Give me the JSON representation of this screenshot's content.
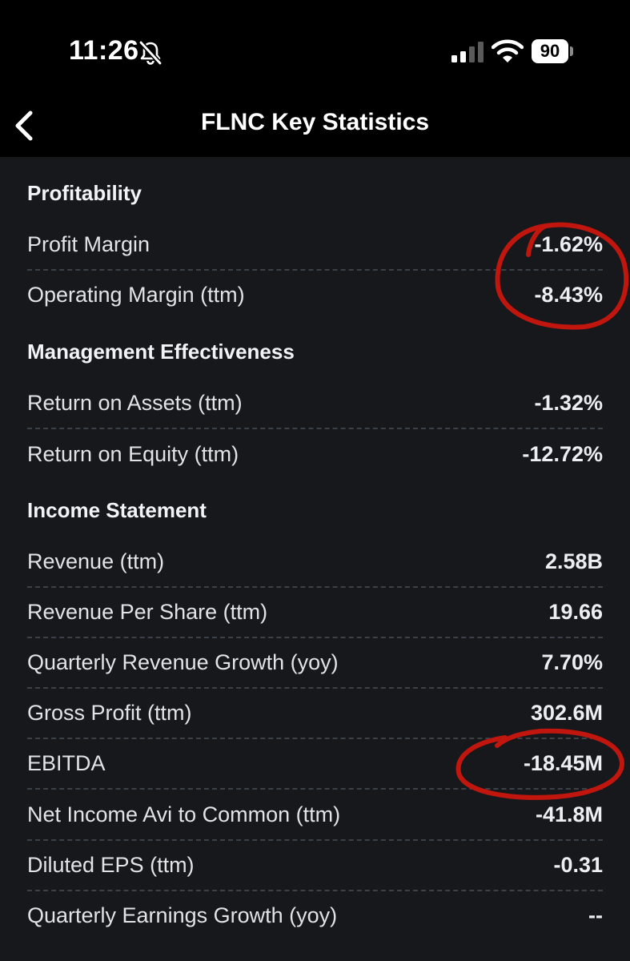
{
  "status_bar": {
    "time": "11:26",
    "battery": "90",
    "icons": [
      "bell-slash-icon",
      "signal-icon",
      "wifi-icon",
      "battery-icon"
    ]
  },
  "nav": {
    "title": "FLNC Key Statistics",
    "back_icon": "chevron-left-icon"
  },
  "colors": {
    "background": "#16181c",
    "header": "#000000",
    "annotation": "#c0160e"
  },
  "sections": [
    {
      "title": "Profitability",
      "rows": [
        {
          "label": "Profit Margin",
          "value": "-1.62%"
        },
        {
          "label": "Operating Margin (ttm)",
          "value": "-8.43%"
        }
      ]
    },
    {
      "title": "Management Effectiveness",
      "rows": [
        {
          "label": "Return on Assets (ttm)",
          "value": "-1.32%"
        },
        {
          "label": "Return on Equity (ttm)",
          "value": "-12.72%"
        }
      ]
    },
    {
      "title": "Income Statement",
      "rows": [
        {
          "label": "Revenue (ttm)",
          "value": "2.58B"
        },
        {
          "label": "Revenue Per Share (ttm)",
          "value": "19.66"
        },
        {
          "label": "Quarterly Revenue Growth (yoy)",
          "value": "7.70%"
        },
        {
          "label": "Gross Profit (ttm)",
          "value": "302.6M"
        },
        {
          "label": "EBITDA",
          "value": "-18.45M"
        },
        {
          "label": "Net Income Avi to Common (ttm)",
          "value": "-41.8M"
        },
        {
          "label": "Diluted EPS (ttm)",
          "value": "-0.31"
        },
        {
          "label": "Quarterly Earnings Growth (yoy)",
          "value": "--"
        }
      ]
    }
  ]
}
